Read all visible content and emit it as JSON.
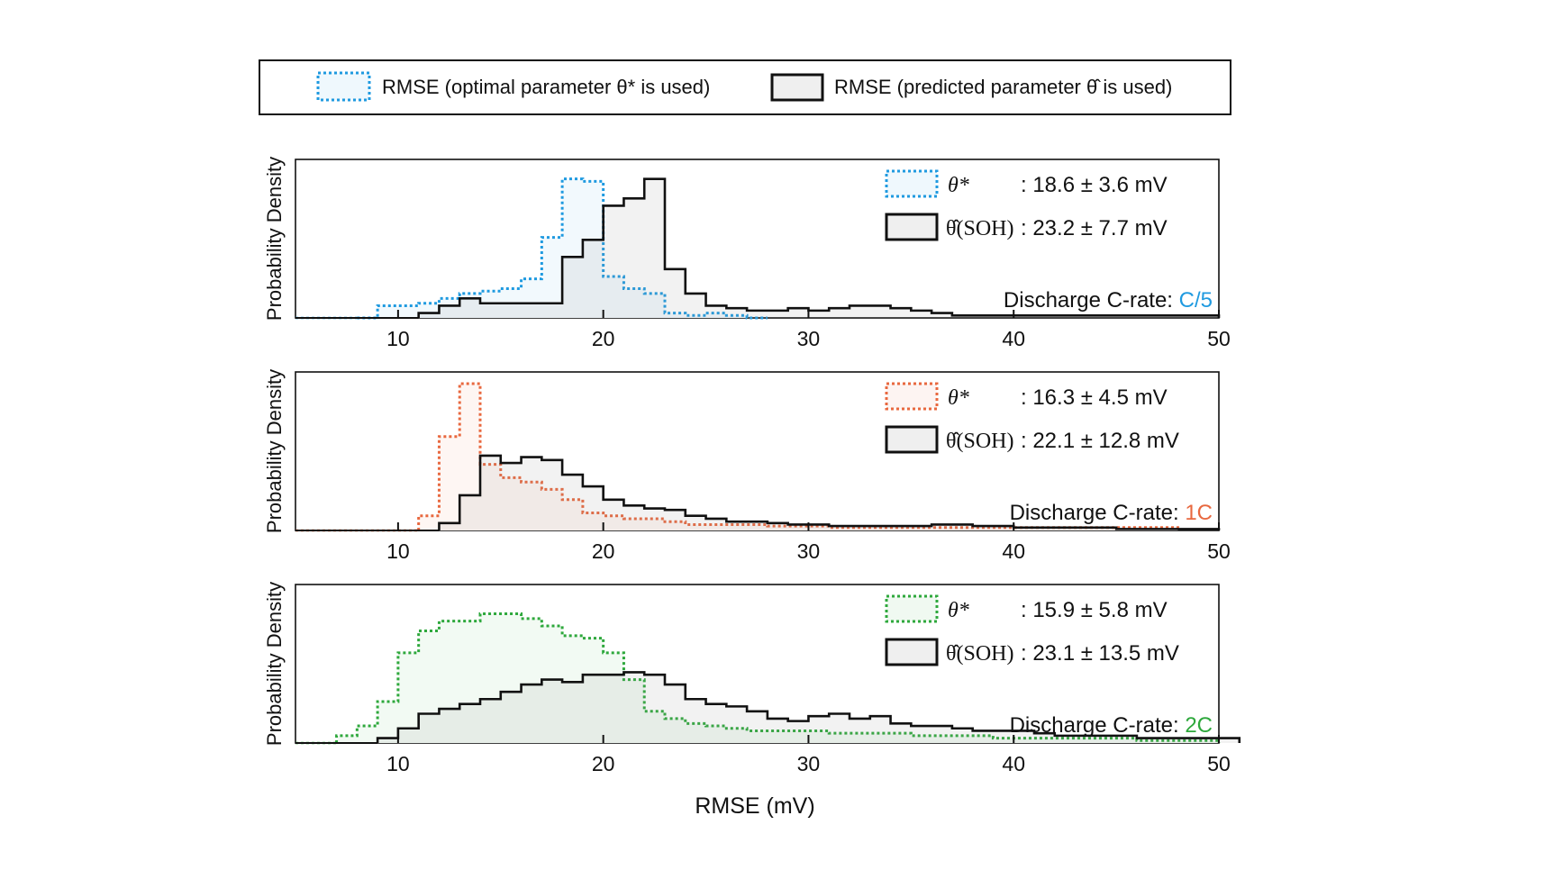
{
  "legend": {
    "optimal_label": "RMSE (optimal parameter θ* is used)",
    "predicted_label": "RMSE (predicted parameter θ̂ is used)"
  },
  "x_label": "RMSE (mV)",
  "y_label": "Probability Density",
  "colors": {
    "predicted": "#111111",
    "c5": "#1f9ae0",
    "c1": "#e8683f",
    "c2": "#2ea83c"
  },
  "chart_data": [
    {
      "type": "histogram",
      "condition_prefix": "Discharge C-rate: ",
      "condition": "C/5",
      "xlim": [
        5,
        50
      ],
      "xticks": [
        10,
        20,
        30,
        40,
        50
      ],
      "xlabel": "RMSE (mV)",
      "ylabel": "Probability Density",
      "bin_width": 1,
      "series": [
        {
          "name": "θ*",
          "stat": ": 18.6 ± 3.6 mV",
          "style": "dotted",
          "bins_start": 8,
          "values": [
            0,
            0.05,
            0.05,
            0.06,
            0.08,
            0.1,
            0.11,
            0.12,
            0.16,
            0.33,
            0.57,
            0.56,
            0.17,
            0.12,
            0.1,
            0.02,
            0.01,
            0.02,
            0.01,
            0.0
          ]
        },
        {
          "name": "θ̂(SOH)",
          "stat": ": 23.2 ± 7.7 mV",
          "style": "solid",
          "bins_start": 11,
          "values": [
            0.02,
            0.05,
            0.08,
            0.06,
            0.06,
            0.06,
            0.06,
            0.25,
            0.32,
            0.46,
            0.49,
            0.57,
            0.2,
            0.1,
            0.05,
            0.04,
            0.03,
            0.03,
            0.04,
            0.03,
            0.04,
            0.05,
            0.05,
            0.04,
            0.03,
            0.02,
            0.01,
            0.01,
            0.01,
            0.01,
            0.01,
            0.01,
            0.01,
            0.01,
            0.01,
            0.01,
            0.01,
            0.01,
            0.01
          ]
        }
      ]
    },
    {
      "type": "histogram",
      "condition_prefix": "Discharge C-rate: ",
      "condition": "1C",
      "xlim": [
        5,
        50
      ],
      "xticks": [
        10,
        20,
        30,
        40,
        50
      ],
      "xlabel": "RMSE (mV)",
      "ylabel": "Probability Density",
      "bin_width": 1,
      "series": [
        {
          "name": "θ*",
          "stat": ": 16.3 ± 4.5 mV",
          "style": "dotted",
          "bins_start": 11,
          "values": [
            0.1,
            0.64,
            1.0,
            0.45,
            0.36,
            0.33,
            0.28,
            0.21,
            0.12,
            0.1,
            0.08,
            0.08,
            0.06,
            0.04,
            0.04,
            0.04,
            0.04,
            0.03,
            0.03,
            0.03,
            0.02,
            0.02,
            0.02,
            0.02,
            0.02,
            0.02,
            0.02,
            0.02,
            0.02,
            0.02,
            0.02,
            0.02,
            0.02,
            0.02,
            0.02,
            0.02,
            0.02
          ]
        },
        {
          "name": "θ̂(SOH)",
          "stat": ": 22.1 ± 12.8 mV",
          "style": "solid",
          "bins_start": 12,
          "values": [
            0.05,
            0.24,
            0.51,
            0.46,
            0.5,
            0.48,
            0.38,
            0.3,
            0.21,
            0.17,
            0.15,
            0.14,
            0.1,
            0.08,
            0.06,
            0.06,
            0.05,
            0.04,
            0.04,
            0.03,
            0.03,
            0.03,
            0.03,
            0.03,
            0.04,
            0.04,
            0.03,
            0.03,
            0.02,
            0.02,
            0.02,
            0.02,
            0.02,
            0.01,
            0.01,
            0.01,
            0.01,
            0.01
          ]
        }
      ]
    },
    {
      "type": "histogram",
      "condition_prefix": "Discharge C-rate: ",
      "condition": "2C",
      "xlim": [
        5,
        50
      ],
      "xticks": [
        10,
        20,
        30,
        40,
        50
      ],
      "xlabel": "RMSE (mV)",
      "ylabel": "Probability Density",
      "bin_width": 1,
      "series": [
        {
          "name": "θ*",
          "stat": ": 15.9 ± 5.8 mV",
          "style": "dotted",
          "bins_start": 7,
          "values": [
            0.03,
            0.07,
            0.17,
            0.37,
            0.46,
            0.5,
            0.5,
            0.53,
            0.53,
            0.51,
            0.48,
            0.44,
            0.43,
            0.37,
            0.26,
            0.13,
            0.1,
            0.08,
            0.07,
            0.06,
            0.05,
            0.05,
            0.05,
            0.05,
            0.04,
            0.04,
            0.04,
            0.04,
            0.03,
            0.03,
            0.03,
            0.03,
            0.02,
            0.02,
            0.02,
            0.02,
            0.02,
            0.02,
            0.02,
            0.01,
            0.01,
            0.01,
            0.01
          ]
        },
        {
          "name": "θ̂(SOH)",
          "stat": ": 23.1 ± 13.5 mV",
          "style": "solid",
          "bins_start": 9,
          "values": [
            0.02,
            0.06,
            0.12,
            0.14,
            0.16,
            0.18,
            0.21,
            0.24,
            0.26,
            0.25,
            0.28,
            0.28,
            0.29,
            0.28,
            0.24,
            0.18,
            0.16,
            0.15,
            0.13,
            0.1,
            0.09,
            0.11,
            0.12,
            0.1,
            0.11,
            0.08,
            0.07,
            0.07,
            0.06,
            0.05,
            0.05,
            0.05,
            0.04,
            0.03,
            0.03,
            0.03,
            0.03,
            0.02,
            0.02,
            0.02,
            0.02,
            0.02
          ]
        }
      ]
    }
  ]
}
